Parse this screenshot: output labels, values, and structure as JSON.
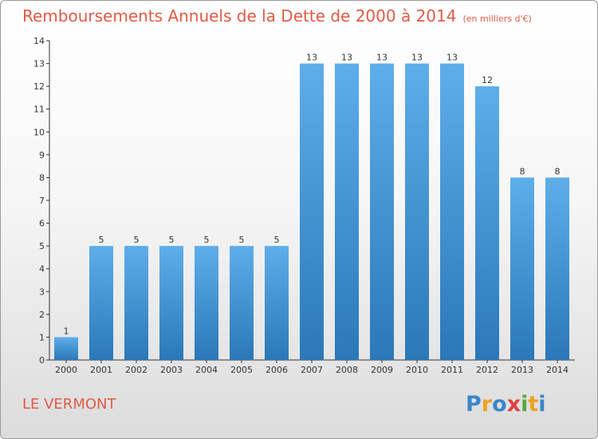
{
  "header": {
    "title": "Remboursements Annuels de la Dette de 2000 à 2014",
    "unit": "(en milliers d'€)"
  },
  "footer": {
    "place": "LE VERMONT",
    "brand": {
      "text": "Proxiti",
      "letters": [
        "P",
        "r",
        "o",
        "x",
        "i",
        "t",
        "i"
      ],
      "colors": [
        "#3a86c8",
        "#f0a020",
        "#3a86c8",
        "#e04040",
        "#5aaa3a",
        "#f0a020",
        "#3a86c8"
      ]
    }
  },
  "colors": {
    "title": "#e05a45",
    "bar_light": "#5aa8e6",
    "bar_dark": "#2a78b8",
    "axis": "#333333"
  },
  "chart_data": {
    "type": "bar",
    "title": "Remboursements Annuels de la Dette de 2000 à 2014",
    "subtitle": "(en milliers d'€)",
    "categories": [
      "2000",
      "2001",
      "2002",
      "2003",
      "2004",
      "2005",
      "2006",
      "2007",
      "2008",
      "2009",
      "2010",
      "2011",
      "2012",
      "2013",
      "2014"
    ],
    "values": [
      1,
      5,
      5,
      5,
      5,
      5,
      5,
      13,
      13,
      13,
      13,
      13,
      12,
      8,
      8
    ],
    "ylim": [
      0,
      14
    ],
    "yticks": [
      0,
      1,
      2,
      3,
      4,
      5,
      6,
      7,
      8,
      9,
      10,
      11,
      12,
      13,
      14
    ],
    "xlabel": "",
    "ylabel": "",
    "grid": false,
    "legend": "none"
  }
}
